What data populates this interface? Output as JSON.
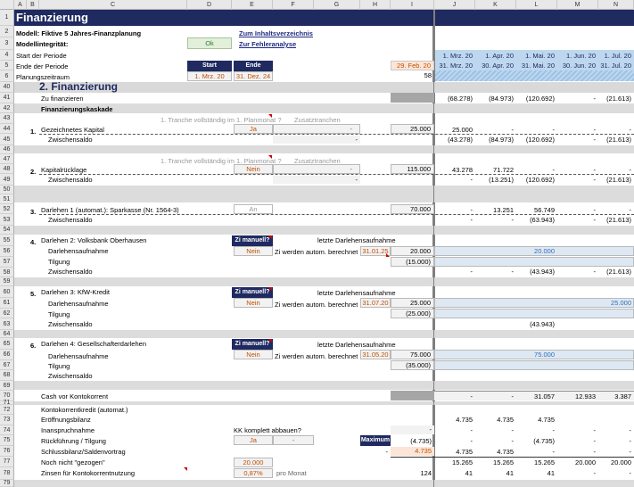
{
  "column_headers": [
    "A",
    "B",
    "C",
    "D",
    "E",
    "F",
    "G",
    "H",
    "I",
    "J",
    "K",
    "L",
    "M",
    "N"
  ],
  "title": "Finanzierung",
  "model_label": "Modell: Fiktive 5 Jahres-Finanzplanung",
  "integrity_label": "Modellintegrität:",
  "integrity_status": "Ok",
  "link_contents": "Zum Inhaltsverzeichnis",
  "link_errors": "Zur Fehleranalyse",
  "period_start_label": "Start der Periode",
  "period_end_label": "Ende der Periode",
  "planning_label": "Planungszeitraum",
  "start_header": "Start",
  "end_header": "Ende",
  "start_value": "1. Mrz. 20",
  "end_value": "31. Dez. 24",
  "last_date": "29. Feb. 20",
  "planning_months": "58",
  "period_starts": [
    "1. Mrz. 20",
    "1. Apr. 20",
    "1. Mai. 20",
    "1. Jun. 20",
    "1. Jul. 20"
  ],
  "period_ends": [
    "31. Mrz. 20",
    "30. Apr. 20",
    "31. Mai. 20",
    "30. Jun. 20",
    "31. Jul. 20"
  ],
  "section_title": "2. Finanzierung",
  "to_finance_label": "Zu finanzieren",
  "to_finance_values": [
    "(68.278)",
    "(84.973)",
    "(120.692)",
    "-",
    "(21.613)"
  ],
  "cascade_label": "Finanzierungskaskade",
  "tranche_label": "1. Tranche vollständig im 1. Planmonat ?",
  "additional_tranches": "Zusatztranchen",
  "equity": {
    "num": "1.",
    "label": "Gezeichnetes Kapital",
    "choice": "Ja",
    "dash": "-",
    "amount": "25.000",
    "values": [
      "25.000",
      "-",
      "-",
      "-",
      "-"
    ],
    "sub_label": "Zwischensaldo",
    "sub_dash": "-",
    "sub_values": [
      "(43.278)",
      "(84.973)",
      "(120.692)",
      "-",
      "(21.613)"
    ]
  },
  "reserve": {
    "num": "2.",
    "label": "Kapitalrücklage",
    "choice": "Nein",
    "dash": "-",
    "amount": "115.000",
    "values": [
      "43.278",
      "71.722",
      "-",
      "-",
      "-"
    ],
    "sub_label": "Zwischensaldo",
    "sub_dash": "-",
    "sub_values": [
      "-",
      "(13.251)",
      "(120.692)",
      "-",
      "(21.613)"
    ]
  },
  "loan1": {
    "num": "3.",
    "label": "Darlehen 1 (automat.): Sparkasse (Nr. 1564-3)",
    "choice": "An",
    "amount": "70.000",
    "values": [
      "-",
      "13.251",
      "56.749",
      "-",
      "-"
    ],
    "sub_label": "Zwischensaldo",
    "sub_values": [
      "-",
      "-",
      "(63.943)",
      "-",
      "(21.613)"
    ]
  },
  "manual_label": "Zi manuell?",
  "last_loan_label": "letzte Darlehensaufnahme",
  "auto_calc_label": "Zi werden autom. berechnet",
  "loan2": {
    "num": "4.",
    "label": "Darlehen 2: Volksbank Oberhausen",
    "choice": "Nein",
    "date": "31.01.25",
    "draw_label": "Darlehensaufnahme",
    "draw_amount": "20.000",
    "repay_label": "Tilgung",
    "repay_amount": "(15.000)",
    "draw_values": [
      "",
      "",
      "20.000",
      "",
      ""
    ],
    "sub_label": "Zwischensaldo",
    "sub_values": [
      "-",
      "-",
      "(43.943)",
      "-",
      "(21.613)"
    ]
  },
  "loan3": {
    "num": "5.",
    "label": "Darlehen 3: KfW-Kredit",
    "choice": "Nein",
    "date": "31.07.20",
    "draw_label": "Darlehensaufnahme",
    "draw_amount": "25.000",
    "repay_label": "Tilgung",
    "repay_amount": "(25.000)",
    "draw_values": [
      "",
      "",
      "",
      "",
      "25.000"
    ],
    "sub_label": "Zwischensaldo",
    "sub_values": [
      "",
      "",
      "(43.943)",
      "",
      ""
    ]
  },
  "loan4": {
    "num": "6.",
    "label": "Darlehen 4: Gesellschafterdarlehen",
    "choice": "Nein",
    "date": "31.05.20",
    "draw_label": "Darlehensaufnahme",
    "draw_amount": "75.000",
    "repay_label": "Tilgung",
    "repay_amount": "(35.000)",
    "draw_values": [
      "",
      "",
      "75.000",
      "",
      ""
    ],
    "sub_label": "Zwischensaldo",
    "sub_values": [
      "",
      "",
      "",
      "",
      ""
    ]
  },
  "cash_label": "Cash vor Kontokorrent",
  "cash_values": [
    "-",
    "-",
    "31.057",
    "12.933",
    "3.387"
  ],
  "overdraft_label": "Kontokorrentkredit (automat.)",
  "opening_label": "Eröffnungsbilanz",
  "opening_values": [
    "4.735",
    "4.735",
    "4.735",
    "",
    ""
  ],
  "usage_label": "Inanspruchnahme",
  "usage_dash": "-",
  "usage_values": [
    "-",
    "-",
    "-",
    "-",
    "-"
  ],
  "reduce_label": "KK komplett abbauen?",
  "repay_label": "Rückführung / Tilgung",
  "repay_choice": "Ja",
  "repay_dash": "-",
  "maximum_label": "Maximum",
  "repay_amount": "(4.735)",
  "repay_values": [
    "-",
    "-",
    "(4.735)",
    "-",
    "-"
  ],
  "closing_label": "Schlussbilanz/Saldenvortrag",
  "closing_dash": "-",
  "closing_amount": "4.735",
  "closing_values": [
    "4.735",
    "4.735",
    "-",
    "-",
    "-"
  ],
  "unused_label": "Noch nicht \"gezogen\"",
  "limit": "20.000",
  "unused_values": [
    "15.265",
    "15.265",
    "15.265",
    "20.000",
    "20.000"
  ],
  "interest_label": "Zinsen für Kontokorrentnutzung",
  "interest_rate": "0,87%",
  "per_month": "pro Monat",
  "interest_total": "124",
  "interest_values": [
    "41",
    "41",
    "41",
    "-",
    "-"
  ],
  "row_numbers": [
    "1",
    "2",
    "3",
    "4",
    "5",
    "6",
    "40",
    "41",
    "42",
    "43",
    "44",
    "45",
    "46",
    "47",
    "48",
    "49",
    "50",
    "51",
    "52",
    "53",
    "54",
    "55",
    "56",
    "57",
    "58",
    "59",
    "60",
    "61",
    "62",
    "63",
    "64",
    "65",
    "66",
    "67",
    "68",
    "69",
    "70",
    "71",
    "72",
    "73",
    "74",
    "75",
    "76",
    "77",
    "78",
    "79"
  ]
}
